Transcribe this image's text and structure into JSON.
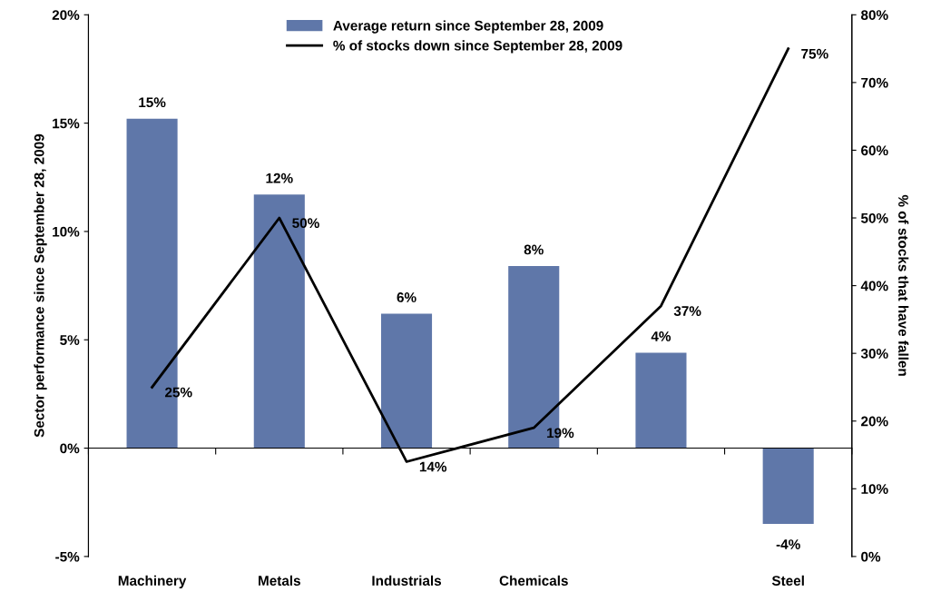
{
  "chart_data": {
    "type": "bar",
    "categories": [
      "Machinery",
      "Metals",
      "Industrials",
      "Chemicals",
      null,
      "Steel"
    ],
    "ylabel": "Sector performance since September 28, 2009",
    "y2label": "% of stocks that have fallen",
    "series": [
      {
        "name": "Average return since September 28, 2009",
        "color": "#5f77a9",
        "values": [
          15.2,
          11.7,
          6.2,
          8.4,
          4.4,
          -3.5
        ],
        "value_labels": [
          "15%",
          "12%",
          "6%",
          "8%",
          "4%",
          "-4%"
        ]
      },
      {
        "name": "% of stocks down since September 28, 2009",
        "type": "line",
        "axis": "y2",
        "color": "#000000",
        "values": [
          25,
          50,
          14,
          19,
          37,
          75
        ],
        "value_labels": [
          "25%",
          "50%",
          "14%",
          "19%",
          "37%",
          "75%"
        ]
      }
    ],
    "ylim": [
      -5,
      20
    ],
    "yticks": [
      {
        "value": -5,
        "label": "-5%"
      },
      {
        "value": 0,
        "label": "0%"
      },
      {
        "value": 5,
        "label": "5%"
      },
      {
        "value": 10,
        "label": "10%"
      },
      {
        "value": 15,
        "label": "15%"
      },
      {
        "value": 20,
        "label": "20%"
      }
    ],
    "y2lim": [
      0,
      80
    ],
    "y2ticks": [
      {
        "value": 0,
        "label": "0%"
      },
      {
        "value": 10,
        "label": "10%"
      },
      {
        "value": 20,
        "label": "20%"
      },
      {
        "value": 30,
        "label": "30%"
      },
      {
        "value": 40,
        "label": "40%"
      },
      {
        "value": 50,
        "label": "50%"
      },
      {
        "value": 60,
        "label": "60%"
      },
      {
        "value": 70,
        "label": "70%"
      },
      {
        "value": 80,
        "label": "80%"
      }
    ],
    "legend": "top",
    "line_style": "solid",
    "marker": "none"
  }
}
